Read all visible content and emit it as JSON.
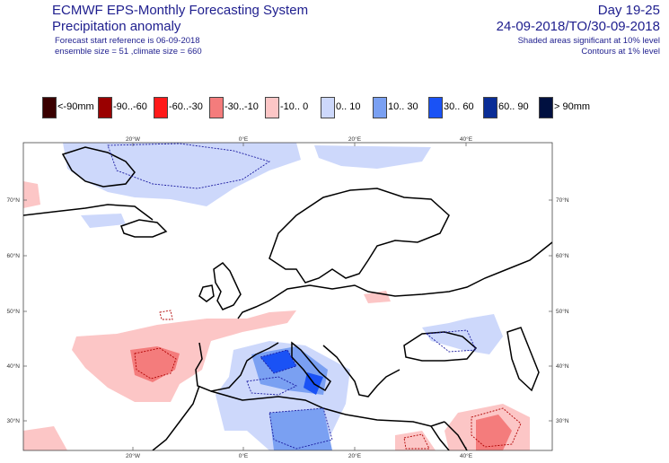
{
  "header": {
    "title": "ECMWF EPS-Monthly Forecasting System",
    "subtitle": "Precipitation anomaly",
    "forecast_ref": "Forecast start reference is 06-09-2018",
    "ensemble": "ensemble size = 51  ,climate size = 660",
    "day_range": "Day 19-25",
    "period": "24-09-2018/TO/30-09-2018",
    "shaded_note": "Shaded areas significant at 10% level",
    "contour_note": "Contours at 1% level"
  },
  "legend": [
    {
      "label": "<-90mm",
      "color": "#3a0000"
    },
    {
      "label": "-90..-60",
      "color": "#9a0000"
    },
    {
      "label": "-60..-30",
      "color": "#ff1a1a"
    },
    {
      "label": "-30..-10",
      "color": "#f47c7c"
    },
    {
      "label": "-10..  0",
      "color": "#fcc6c6"
    },
    {
      "label": "0.. 10",
      "color": "#cdd8fb"
    },
    {
      "label": "10.. 30",
      "color": "#7aa0f2"
    },
    {
      "label": "30.. 60",
      "color": "#1a52f5"
    },
    {
      "label": "60.. 90",
      "color": "#0a2d96"
    },
    {
      "label": "> 90mm",
      "color": "#001040"
    }
  ],
  "map": {
    "lon_labels": [
      "20°W",
      "0°E",
      "20°E",
      "40°E"
    ],
    "lat_labels": [
      "70°N",
      "60°N",
      "50°N",
      "40°N",
      "30°N"
    ],
    "land_color": "#000000",
    "pos_contour_color": "#1a1aa0",
    "neg_contour_color": "#b00000"
  }
}
